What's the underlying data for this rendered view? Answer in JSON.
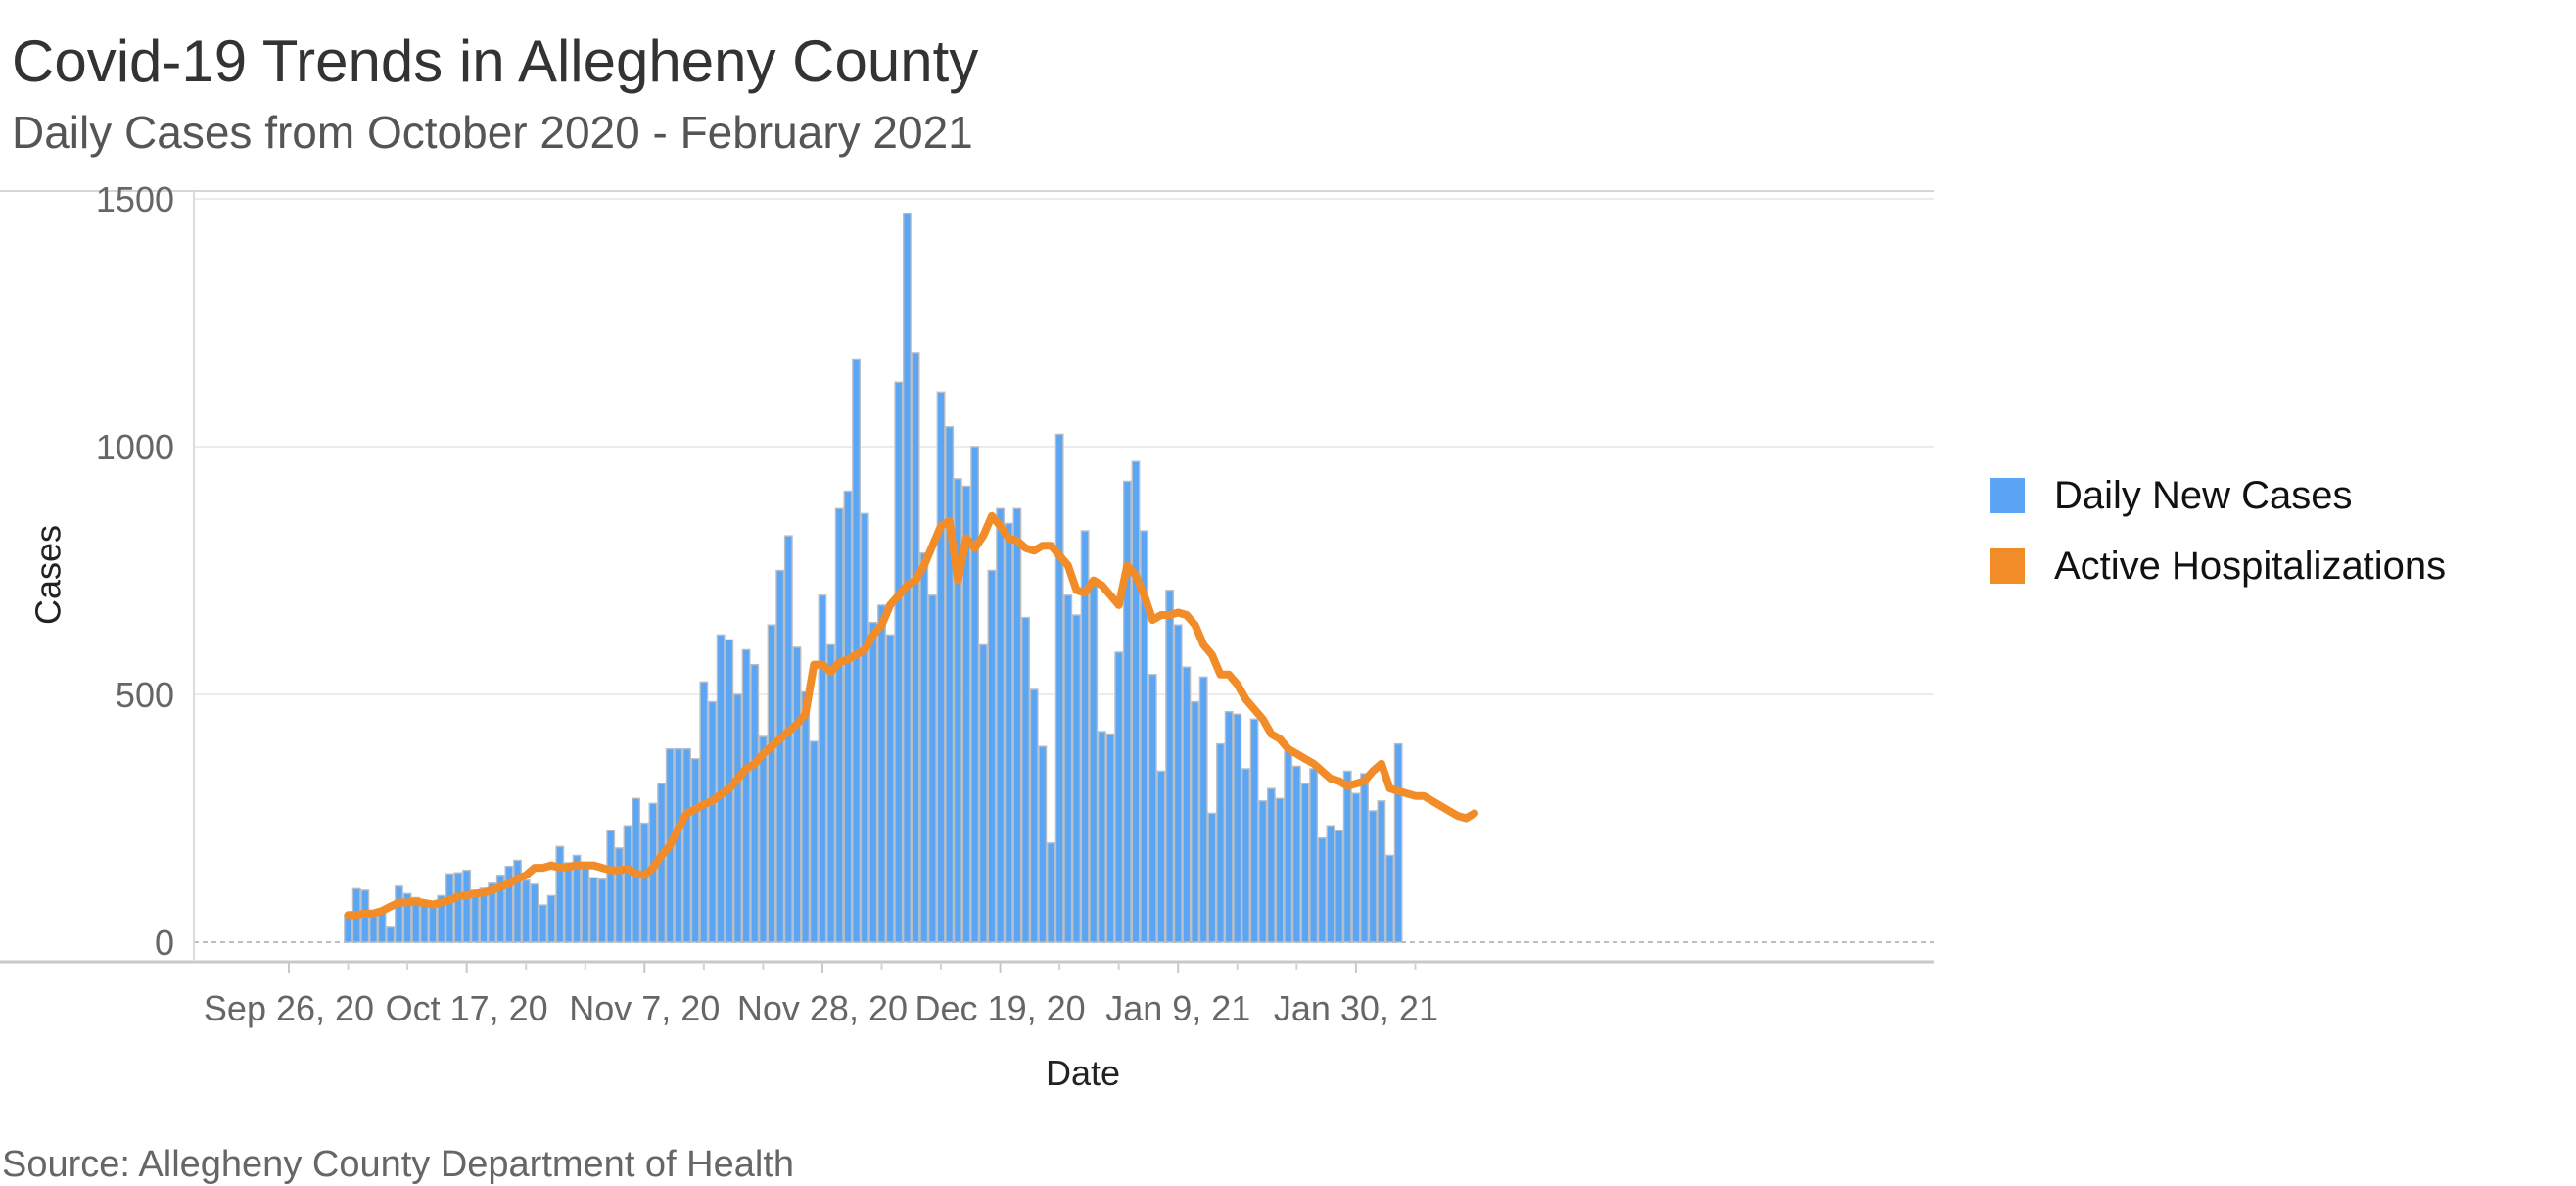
{
  "title": "Covid-19 Trends in Allegheny County",
  "subtitle": "Daily Cases from October 2020 - February 2021",
  "source": "Source: Allegheny County Department of Health",
  "colors": {
    "bars": "#5aa6f4",
    "bar_edge": "#b9bec6",
    "line": "#f28c28",
    "grid": "#ececec",
    "axis": "#c8c8c8"
  },
  "chart_data": {
    "type": "bar",
    "xlabel": "Date",
    "ylabel": "Cases",
    "ylim": [
      0,
      1500
    ],
    "yticks": [
      0,
      500,
      1000,
      1500
    ],
    "x_tick_labels": [
      "Sep 26, 20",
      "Oct 17, 20",
      "Nov 7, 20",
      "Nov 28, 20",
      "Dec 19, 20",
      "Jan 9, 21",
      "Jan 30, 21"
    ],
    "x_tick_day_index": [
      0,
      21,
      42,
      63,
      84,
      105,
      126
    ],
    "start_day_index": 7,
    "legend_position": "right",
    "series": [
      {
        "name": "Daily New Cases",
        "type": "bar",
        "values": [
          55,
          108,
          105,
          63,
          62,
          30,
          113,
          98,
          90,
          78,
          80,
          94,
          138,
          140,
          145,
          105,
          109,
          119,
          135,
          153,
          165,
          125,
          117,
          75,
          94,
          193,
          160,
          175,
          150,
          130,
          127,
          225,
          190,
          235,
          290,
          240,
          280,
          320,
          390,
          390,
          390,
          370,
          525,
          485,
          620,
          610,
          500,
          590,
          560,
          415,
          640,
          750,
          820,
          595,
          505,
          405,
          700,
          600,
          875,
          910,
          1175,
          865,
          645,
          680,
          620,
          1130,
          1470,
          1190,
          785,
          700,
          1110,
          1040,
          935,
          920,
          1000,
          600,
          750,
          875,
          845,
          875,
          655,
          510,
          395,
          200,
          1025,
          700,
          660,
          830,
          720,
          425,
          420,
          585,
          930,
          970,
          830,
          540,
          345,
          710,
          640,
          555,
          485,
          535,
          260,
          400,
          465,
          460,
          350,
          450,
          285,
          310,
          290,
          385,
          355,
          320,
          350,
          210,
          235,
          225,
          345,
          300,
          340,
          265,
          285,
          175,
          400
        ]
      },
      {
        "name": "Active Hospitalizations",
        "type": "line",
        "values": [
          55,
          55,
          58,
          58,
          63,
          72,
          80,
          80,
          82,
          79,
          76,
          80,
          85,
          92,
          95,
          98,
          100,
          105,
          112,
          118,
          128,
          135,
          150,
          150,
          155,
          150,
          152,
          155,
          155,
          155,
          150,
          145,
          145,
          148,
          138,
          135,
          150,
          175,
          195,
          230,
          260,
          268,
          278,
          285,
          298,
          310,
          330,
          350,
          360,
          380,
          395,
          410,
          425,
          440,
          460,
          560,
          560,
          545,
          565,
          570,
          580,
          590,
          620,
          640,
          680,
          700,
          720,
          730,
          760,
          800,
          840,
          850,
          730,
          815,
          795,
          820,
          860,
          840,
          815,
          810,
          795,
          790,
          800,
          800,
          780,
          760,
          710,
          705,
          730,
          720,
          700,
          680,
          760,
          740,
          700,
          650,
          660,
          660,
          665,
          660,
          640,
          600,
          580,
          540,
          540,
          520,
          490,
          470,
          450,
          420,
          410,
          390,
          380,
          370,
          360,
          345,
          330,
          325,
          315,
          320,
          325,
          345,
          360,
          310,
          305,
          300,
          295,
          295,
          285,
          275,
          265,
          255,
          250,
          260
        ]
      }
    ]
  }
}
